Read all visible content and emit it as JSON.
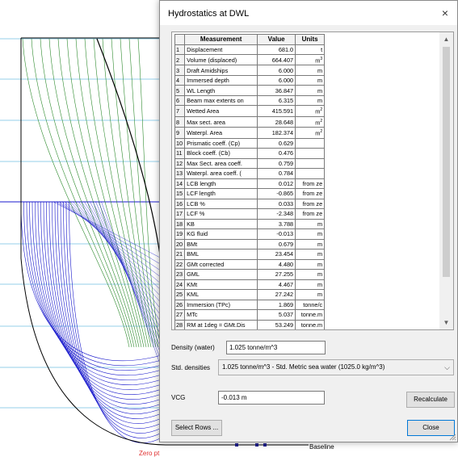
{
  "background": {
    "baseline_label": "Baseline",
    "zero_label": "Zero pt",
    "colors": {
      "sections_forward": "#1a1acc",
      "sections_aft": "#2e8b2e",
      "waterlines": "#2aa0d6",
      "profile": "#000000"
    }
  },
  "dialog": {
    "title": "Hydrostatics at DWL",
    "close_glyph": "×",
    "columns": {
      "measurement": "Measurement",
      "value": "Value",
      "units": "Units"
    },
    "rows": [
      {
        "idx": "1",
        "name": "Displacement",
        "value": "681.0",
        "unit": "t"
      },
      {
        "idx": "2",
        "name": "Volume (displaced)",
        "value": "664.407",
        "unit": "m^3"
      },
      {
        "idx": "3",
        "name": "Draft Amidships",
        "value": "6.000",
        "unit": "m"
      },
      {
        "idx": "4",
        "name": "Immersed depth",
        "value": "6.000",
        "unit": "m"
      },
      {
        "idx": "5",
        "name": "WL Length",
        "value": "36.847",
        "unit": "m"
      },
      {
        "idx": "6",
        "name": "Beam max extents on",
        "value": "6.315",
        "unit": "m"
      },
      {
        "idx": "7",
        "name": "Wetted Area",
        "value": "415.591",
        "unit": "m^2"
      },
      {
        "idx": "8",
        "name": "Max sect. area",
        "value": "28.648",
        "unit": "m^2"
      },
      {
        "idx": "9",
        "name": "Waterpl. Area",
        "value": "182.374",
        "unit": "m^2"
      },
      {
        "idx": "10",
        "name": "Prismatic coeff. (Cp)",
        "value": "0.629",
        "unit": ""
      },
      {
        "idx": "11",
        "name": "Block coeff. (Cb)",
        "value": "0.476",
        "unit": ""
      },
      {
        "idx": "12",
        "name": "Max Sect. area coeff.",
        "value": "0.759",
        "unit": ""
      },
      {
        "idx": "13",
        "name": "Waterpl. area coeff. (",
        "value": "0.784",
        "unit": ""
      },
      {
        "idx": "14",
        "name": "LCB length",
        "value": "0.012",
        "unit": "from ze"
      },
      {
        "idx": "15",
        "name": "LCF length",
        "value": "-0.865",
        "unit": "from ze"
      },
      {
        "idx": "16",
        "name": "LCB %",
        "value": "0.033",
        "unit": "from ze"
      },
      {
        "idx": "17",
        "name": "LCF %",
        "value": "-2.348",
        "unit": "from ze"
      },
      {
        "idx": "18",
        "name": "KB",
        "value": "3.788",
        "unit": "m"
      },
      {
        "idx": "19",
        "name": "KG fluid",
        "value": "-0.013",
        "unit": "m"
      },
      {
        "idx": "20",
        "name": "BMt",
        "value": "0.679",
        "unit": "m"
      },
      {
        "idx": "21",
        "name": "BML",
        "value": "23.454",
        "unit": "m"
      },
      {
        "idx": "22",
        "name": "GMt corrected",
        "value": "4.480",
        "unit": "m"
      },
      {
        "idx": "23",
        "name": "GML",
        "value": "27.255",
        "unit": "m"
      },
      {
        "idx": "24",
        "name": "KMt",
        "value": "4.467",
        "unit": "m"
      },
      {
        "idx": "25",
        "name": "KML",
        "value": "27.242",
        "unit": "m"
      },
      {
        "idx": "26",
        "name": "Immersion (TPc)",
        "value": "1.869",
        "unit": "tonne/c"
      },
      {
        "idx": "27",
        "name": "MTc",
        "value": "5.037",
        "unit": "tonne.m"
      },
      {
        "idx": "28",
        "name": "RM at 1deg = GMt.Dis",
        "value": "53.249",
        "unit": "tonne.m"
      }
    ],
    "scroll": {
      "up_icon": "▲",
      "down_icon": "▼"
    },
    "density": {
      "label": "Density (water)",
      "value": "1.025 tonne/m^3"
    },
    "std_densities": {
      "label": "Std. densities",
      "selected": "1.025 tonne/m^3 - Std. Metric sea water (1025.0 kg/m^3)",
      "chevron": "⌵"
    },
    "vcg": {
      "label": "VCG",
      "value": "-0.013 m"
    },
    "buttons": {
      "recalculate": "Recalculate",
      "select_rows": "Select Rows ...",
      "close": "Close"
    }
  }
}
